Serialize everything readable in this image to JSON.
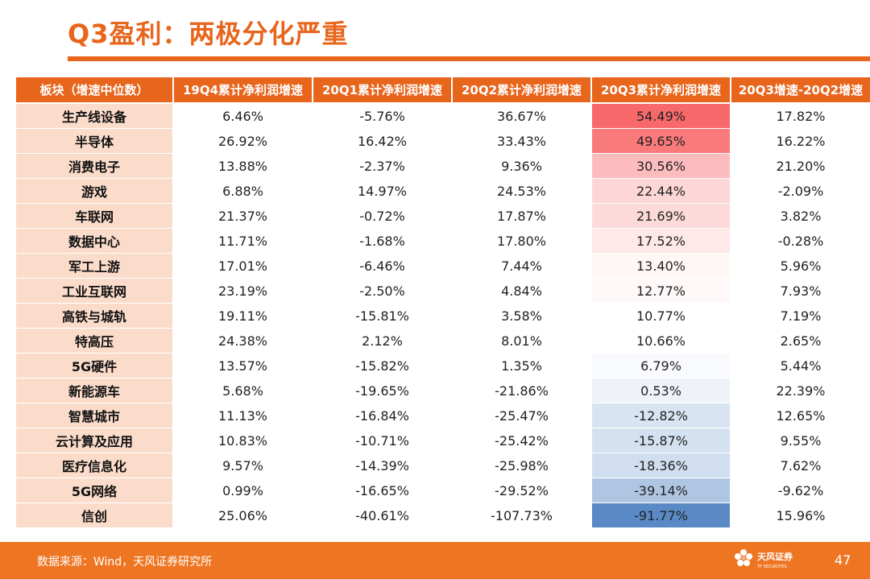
{
  "theme": {
    "accent": "#e8651c",
    "header_fill": "#e8651c",
    "sector_fill": "#fbdccb",
    "footer_fill": "#ee7623",
    "title_color": "#e8651c",
    "positive_strong": "#f8696b",
    "neutral": "#ffffff",
    "negative_strong": "#5a8ac6"
  },
  "slide": {
    "title": "Q3盈利：两极分化严重",
    "page_number": "47"
  },
  "table": {
    "columns": [
      "板块（增速中位数）",
      "19Q4累计净利润增速",
      "20Q1累计净利润增速",
      "20Q2累计净利润增速",
      "20Q3累计净利润增速",
      "20Q3增速-20Q2增速"
    ],
    "rows": [
      {
        "sector": "生产线设备",
        "q4_2019": "6.46%",
        "q1_2020": "-5.76%",
        "q2_2020": "36.67%",
        "q3_2020": "54.49%",
        "q3_minus_q2": "17.82%",
        "q3_value": 54.49
      },
      {
        "sector": "半导体",
        "q4_2019": "26.92%",
        "q1_2020": "16.42%",
        "q2_2020": "33.43%",
        "q3_2020": "49.65%",
        "q3_minus_q2": "16.22%",
        "q3_value": 49.65
      },
      {
        "sector": "消费电子",
        "q4_2019": "13.88%",
        "q1_2020": "-2.37%",
        "q2_2020": "9.36%",
        "q3_2020": "30.56%",
        "q3_minus_q2": "21.20%",
        "q3_value": 30.56
      },
      {
        "sector": "游戏",
        "q4_2019": "6.88%",
        "q1_2020": "14.97%",
        "q2_2020": "24.53%",
        "q3_2020": "22.44%",
        "q3_minus_q2": "-2.09%",
        "q3_value": 22.44
      },
      {
        "sector": "车联网",
        "q4_2019": "21.37%",
        "q1_2020": "-0.72%",
        "q2_2020": "17.87%",
        "q3_2020": "21.69%",
        "q3_minus_q2": "3.82%",
        "q3_value": 21.69
      },
      {
        "sector": "数据中心",
        "q4_2019": "11.71%",
        "q1_2020": "-1.68%",
        "q2_2020": "17.80%",
        "q3_2020": "17.52%",
        "q3_minus_q2": "-0.28%",
        "q3_value": 17.52
      },
      {
        "sector": "军工上游",
        "q4_2019": "17.01%",
        "q1_2020": "-6.46%",
        "q2_2020": "7.44%",
        "q3_2020": "13.40%",
        "q3_minus_q2": "5.96%",
        "q3_value": 13.4
      },
      {
        "sector": "工业互联网",
        "q4_2019": "23.19%",
        "q1_2020": "-2.50%",
        "q2_2020": "4.84%",
        "q3_2020": "12.77%",
        "q3_minus_q2": "7.93%",
        "q3_value": 12.77
      },
      {
        "sector": "高铁与城轨",
        "q4_2019": "19.11%",
        "q1_2020": "-15.81%",
        "q2_2020": "3.58%",
        "q3_2020": "10.77%",
        "q3_minus_q2": "7.19%",
        "q3_value": 10.77
      },
      {
        "sector": "特高压",
        "q4_2019": "24.38%",
        "q1_2020": "2.12%",
        "q2_2020": "8.01%",
        "q3_2020": "10.66%",
        "q3_minus_q2": "2.65%",
        "q3_value": 10.66
      },
      {
        "sector": "5G硬件",
        "q4_2019": "13.57%",
        "q1_2020": "-15.82%",
        "q2_2020": "1.35%",
        "q3_2020": "6.79%",
        "q3_minus_q2": "5.44%",
        "q3_value": 6.79
      },
      {
        "sector": "新能源车",
        "q4_2019": "5.68%",
        "q1_2020": "-19.65%",
        "q2_2020": "-21.86%",
        "q3_2020": "0.53%",
        "q3_minus_q2": "22.39%",
        "q3_value": 0.53
      },
      {
        "sector": "智慧城市",
        "q4_2019": "11.13%",
        "q1_2020": "-16.84%",
        "q2_2020": "-25.47%",
        "q3_2020": "-12.82%",
        "q3_minus_q2": "12.65%",
        "q3_value": -12.82
      },
      {
        "sector": "云计算及应用",
        "q4_2019": "10.83%",
        "q1_2020": "-10.71%",
        "q2_2020": "-25.42%",
        "q3_2020": "-15.87%",
        "q3_minus_q2": "9.55%",
        "q3_value": -15.87
      },
      {
        "sector": "医疗信息化",
        "q4_2019": "9.57%",
        "q1_2020": "-14.39%",
        "q2_2020": "-25.98%",
        "q3_2020": "-18.36%",
        "q3_minus_q2": "7.62%",
        "q3_value": -18.36
      },
      {
        "sector": "5G网络",
        "q4_2019": "0.99%",
        "q1_2020": "-16.65%",
        "q2_2020": "-29.52%",
        "q3_2020": "-39.14%",
        "q3_minus_q2": "-9.62%",
        "q3_value": -39.14
      },
      {
        "sector": "信创",
        "q4_2019": "25.06%",
        "q1_2020": "-40.61%",
        "q2_2020": "-107.73%",
        "q3_2020": "-91.77%",
        "q3_minus_q2": "15.96%",
        "q3_value": -91.77
      }
    ]
  },
  "footer": {
    "source": "数据来源：Wind，天风证券研究所",
    "logo_text": "天风证券",
    "logo_subtext": "TF SECURITIES",
    "logo_icon": "flower-logo-icon"
  }
}
